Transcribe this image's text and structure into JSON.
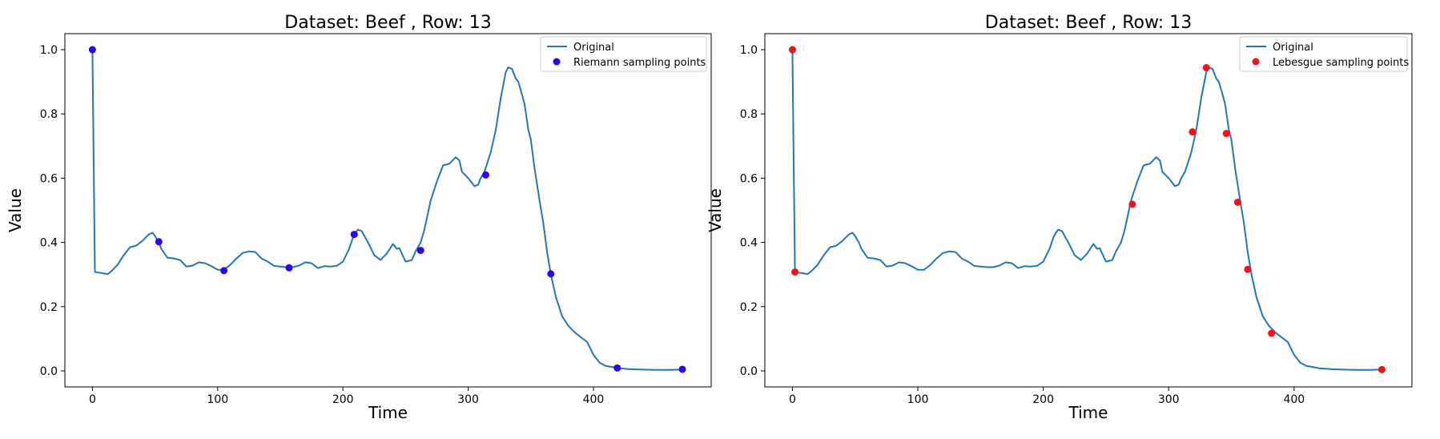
{
  "chart_data": [
    {
      "type": "line",
      "title": "Dataset: Beef , Row: 13",
      "xlabel": "Time",
      "ylabel": "Value",
      "xlim": [
        -22,
        494
      ],
      "ylim": [
        -0.05,
        1.05
      ],
      "xticks": [
        0,
        100,
        200,
        300,
        400
      ],
      "yticks": [
        0.0,
        0.2,
        0.4,
        0.6,
        0.8,
        1.0
      ],
      "grid": false,
      "legend_position": "top-right",
      "line_color": "#1f77b4",
      "series": [
        {
          "name": "Original",
          "kind": "line",
          "color": "#1f77b4",
          "x": [
            0,
            2,
            5,
            10,
            12,
            15,
            20,
            25,
            30,
            35,
            40,
            45,
            48,
            50,
            53,
            55,
            60,
            65,
            70,
            75,
            80,
            85,
            90,
            95,
            100,
            105,
            110,
            115,
            120,
            125,
            130,
            135,
            140,
            145,
            150,
            155,
            160,
            165,
            170,
            175,
            180,
            185,
            190,
            195,
            200,
            205,
            208,
            210,
            212,
            215,
            220,
            225,
            230,
            235,
            240,
            243,
            245,
            250,
            255,
            258,
            262,
            265,
            270,
            275,
            280,
            285,
            290,
            293,
            295,
            300,
            305,
            308,
            310,
            313,
            318,
            322,
            326,
            330,
            332,
            335,
            338,
            340,
            343,
            345,
            348,
            350,
            353,
            357,
            360,
            363,
            366,
            370,
            375,
            380,
            385,
            390,
            395,
            400,
            405,
            410,
            415,
            420,
            430,
            440,
            450,
            460,
            470,
            473
          ],
          "y": [
            1.0,
            0.308,
            0.306,
            0.303,
            0.301,
            0.31,
            0.33,
            0.36,
            0.385,
            0.39,
            0.405,
            0.425,
            0.43,
            0.42,
            0.4,
            0.38,
            0.352,
            0.35,
            0.345,
            0.325,
            0.328,
            0.338,
            0.335,
            0.326,
            0.315,
            0.315,
            0.33,
            0.35,
            0.367,
            0.372,
            0.37,
            0.35,
            0.34,
            0.327,
            0.325,
            0.323,
            0.323,
            0.328,
            0.338,
            0.335,
            0.32,
            0.326,
            0.325,
            0.327,
            0.34,
            0.38,
            0.415,
            0.43,
            0.44,
            0.435,
            0.4,
            0.36,
            0.345,
            0.365,
            0.395,
            0.38,
            0.382,
            0.34,
            0.345,
            0.372,
            0.4,
            0.44,
            0.53,
            0.59,
            0.64,
            0.645,
            0.665,
            0.655,
            0.62,
            0.6,
            0.575,
            0.58,
            0.6,
            0.62,
            0.68,
            0.75,
            0.85,
            0.93,
            0.945,
            0.94,
            0.91,
            0.9,
            0.86,
            0.83,
            0.75,
            0.72,
            0.63,
            0.53,
            0.46,
            0.37,
            0.3,
            0.23,
            0.17,
            0.14,
            0.12,
            0.105,
            0.09,
            0.05,
            0.025,
            0.015,
            0.012,
            0.008,
            0.005,
            0.004,
            0.003,
            0.003,
            0.004,
            0.003
          ]
        },
        {
          "name": "Riemann sampling points",
          "kind": "scatter",
          "color": "#2d00f7",
          "x": [
            0,
            53,
            105,
            157,
            209,
            262,
            314,
            366,
            419,
            471
          ],
          "y": [
            1.0,
            0.402,
            0.312,
            0.321,
            0.425,
            0.375,
            0.61,
            0.302,
            0.009,
            0.005
          ]
        }
      ]
    },
    {
      "type": "line",
      "title": "Dataset: Beef , Row: 13",
      "xlabel": "Time",
      "ylabel": "Value",
      "xlim": [
        -22,
        494
      ],
      "ylim": [
        -0.05,
        1.05
      ],
      "xticks": [
        0,
        100,
        200,
        300,
        400
      ],
      "yticks": [
        0.0,
        0.2,
        0.4,
        0.6,
        0.8,
        1.0
      ],
      "grid": false,
      "legend_position": "top-right",
      "line_color": "#1f77b4",
      "series": [
        {
          "name": "Original",
          "kind": "line",
          "color": "#1f77b4",
          "x": [
            0,
            2,
            5,
            10,
            12,
            15,
            20,
            25,
            30,
            35,
            40,
            45,
            48,
            50,
            53,
            55,
            60,
            65,
            70,
            75,
            80,
            85,
            90,
            95,
            100,
            105,
            110,
            115,
            120,
            125,
            130,
            135,
            140,
            145,
            150,
            155,
            160,
            165,
            170,
            175,
            180,
            185,
            190,
            195,
            200,
            205,
            208,
            210,
            212,
            215,
            220,
            225,
            230,
            235,
            240,
            243,
            245,
            250,
            255,
            258,
            262,
            265,
            270,
            275,
            280,
            285,
            290,
            293,
            295,
            300,
            305,
            308,
            310,
            313,
            318,
            322,
            326,
            330,
            332,
            335,
            338,
            340,
            343,
            345,
            348,
            350,
            353,
            357,
            360,
            363,
            366,
            370,
            375,
            380,
            385,
            390,
            395,
            400,
            405,
            410,
            415,
            420,
            430,
            440,
            450,
            460,
            470,
            473
          ],
          "y": [
            1.0,
            0.308,
            0.306,
            0.303,
            0.301,
            0.31,
            0.33,
            0.36,
            0.385,
            0.39,
            0.405,
            0.425,
            0.43,
            0.42,
            0.4,
            0.38,
            0.352,
            0.35,
            0.345,
            0.325,
            0.328,
            0.338,
            0.335,
            0.326,
            0.315,
            0.315,
            0.33,
            0.35,
            0.367,
            0.372,
            0.37,
            0.35,
            0.34,
            0.327,
            0.325,
            0.323,
            0.323,
            0.328,
            0.338,
            0.335,
            0.32,
            0.326,
            0.325,
            0.327,
            0.34,
            0.38,
            0.415,
            0.43,
            0.44,
            0.435,
            0.4,
            0.36,
            0.345,
            0.365,
            0.395,
            0.38,
            0.382,
            0.34,
            0.345,
            0.372,
            0.4,
            0.44,
            0.53,
            0.59,
            0.64,
            0.645,
            0.665,
            0.655,
            0.62,
            0.6,
            0.575,
            0.58,
            0.6,
            0.62,
            0.68,
            0.75,
            0.85,
            0.93,
            0.945,
            0.94,
            0.91,
            0.9,
            0.86,
            0.83,
            0.75,
            0.72,
            0.63,
            0.53,
            0.46,
            0.37,
            0.3,
            0.23,
            0.17,
            0.14,
            0.12,
            0.105,
            0.09,
            0.05,
            0.025,
            0.015,
            0.012,
            0.008,
            0.005,
            0.004,
            0.003,
            0.003,
            0.004,
            0.003
          ]
        },
        {
          "name": "Lebesgue sampling points",
          "kind": "scatter",
          "color": "#f5111c",
          "x": [
            0,
            2,
            271,
            319,
            330,
            346,
            355,
            363,
            382,
            470
          ],
          "y": [
            1.0,
            0.308,
            0.519,
            0.744,
            0.944,
            0.739,
            0.525,
            0.316,
            0.117,
            0.004
          ]
        }
      ]
    }
  ]
}
